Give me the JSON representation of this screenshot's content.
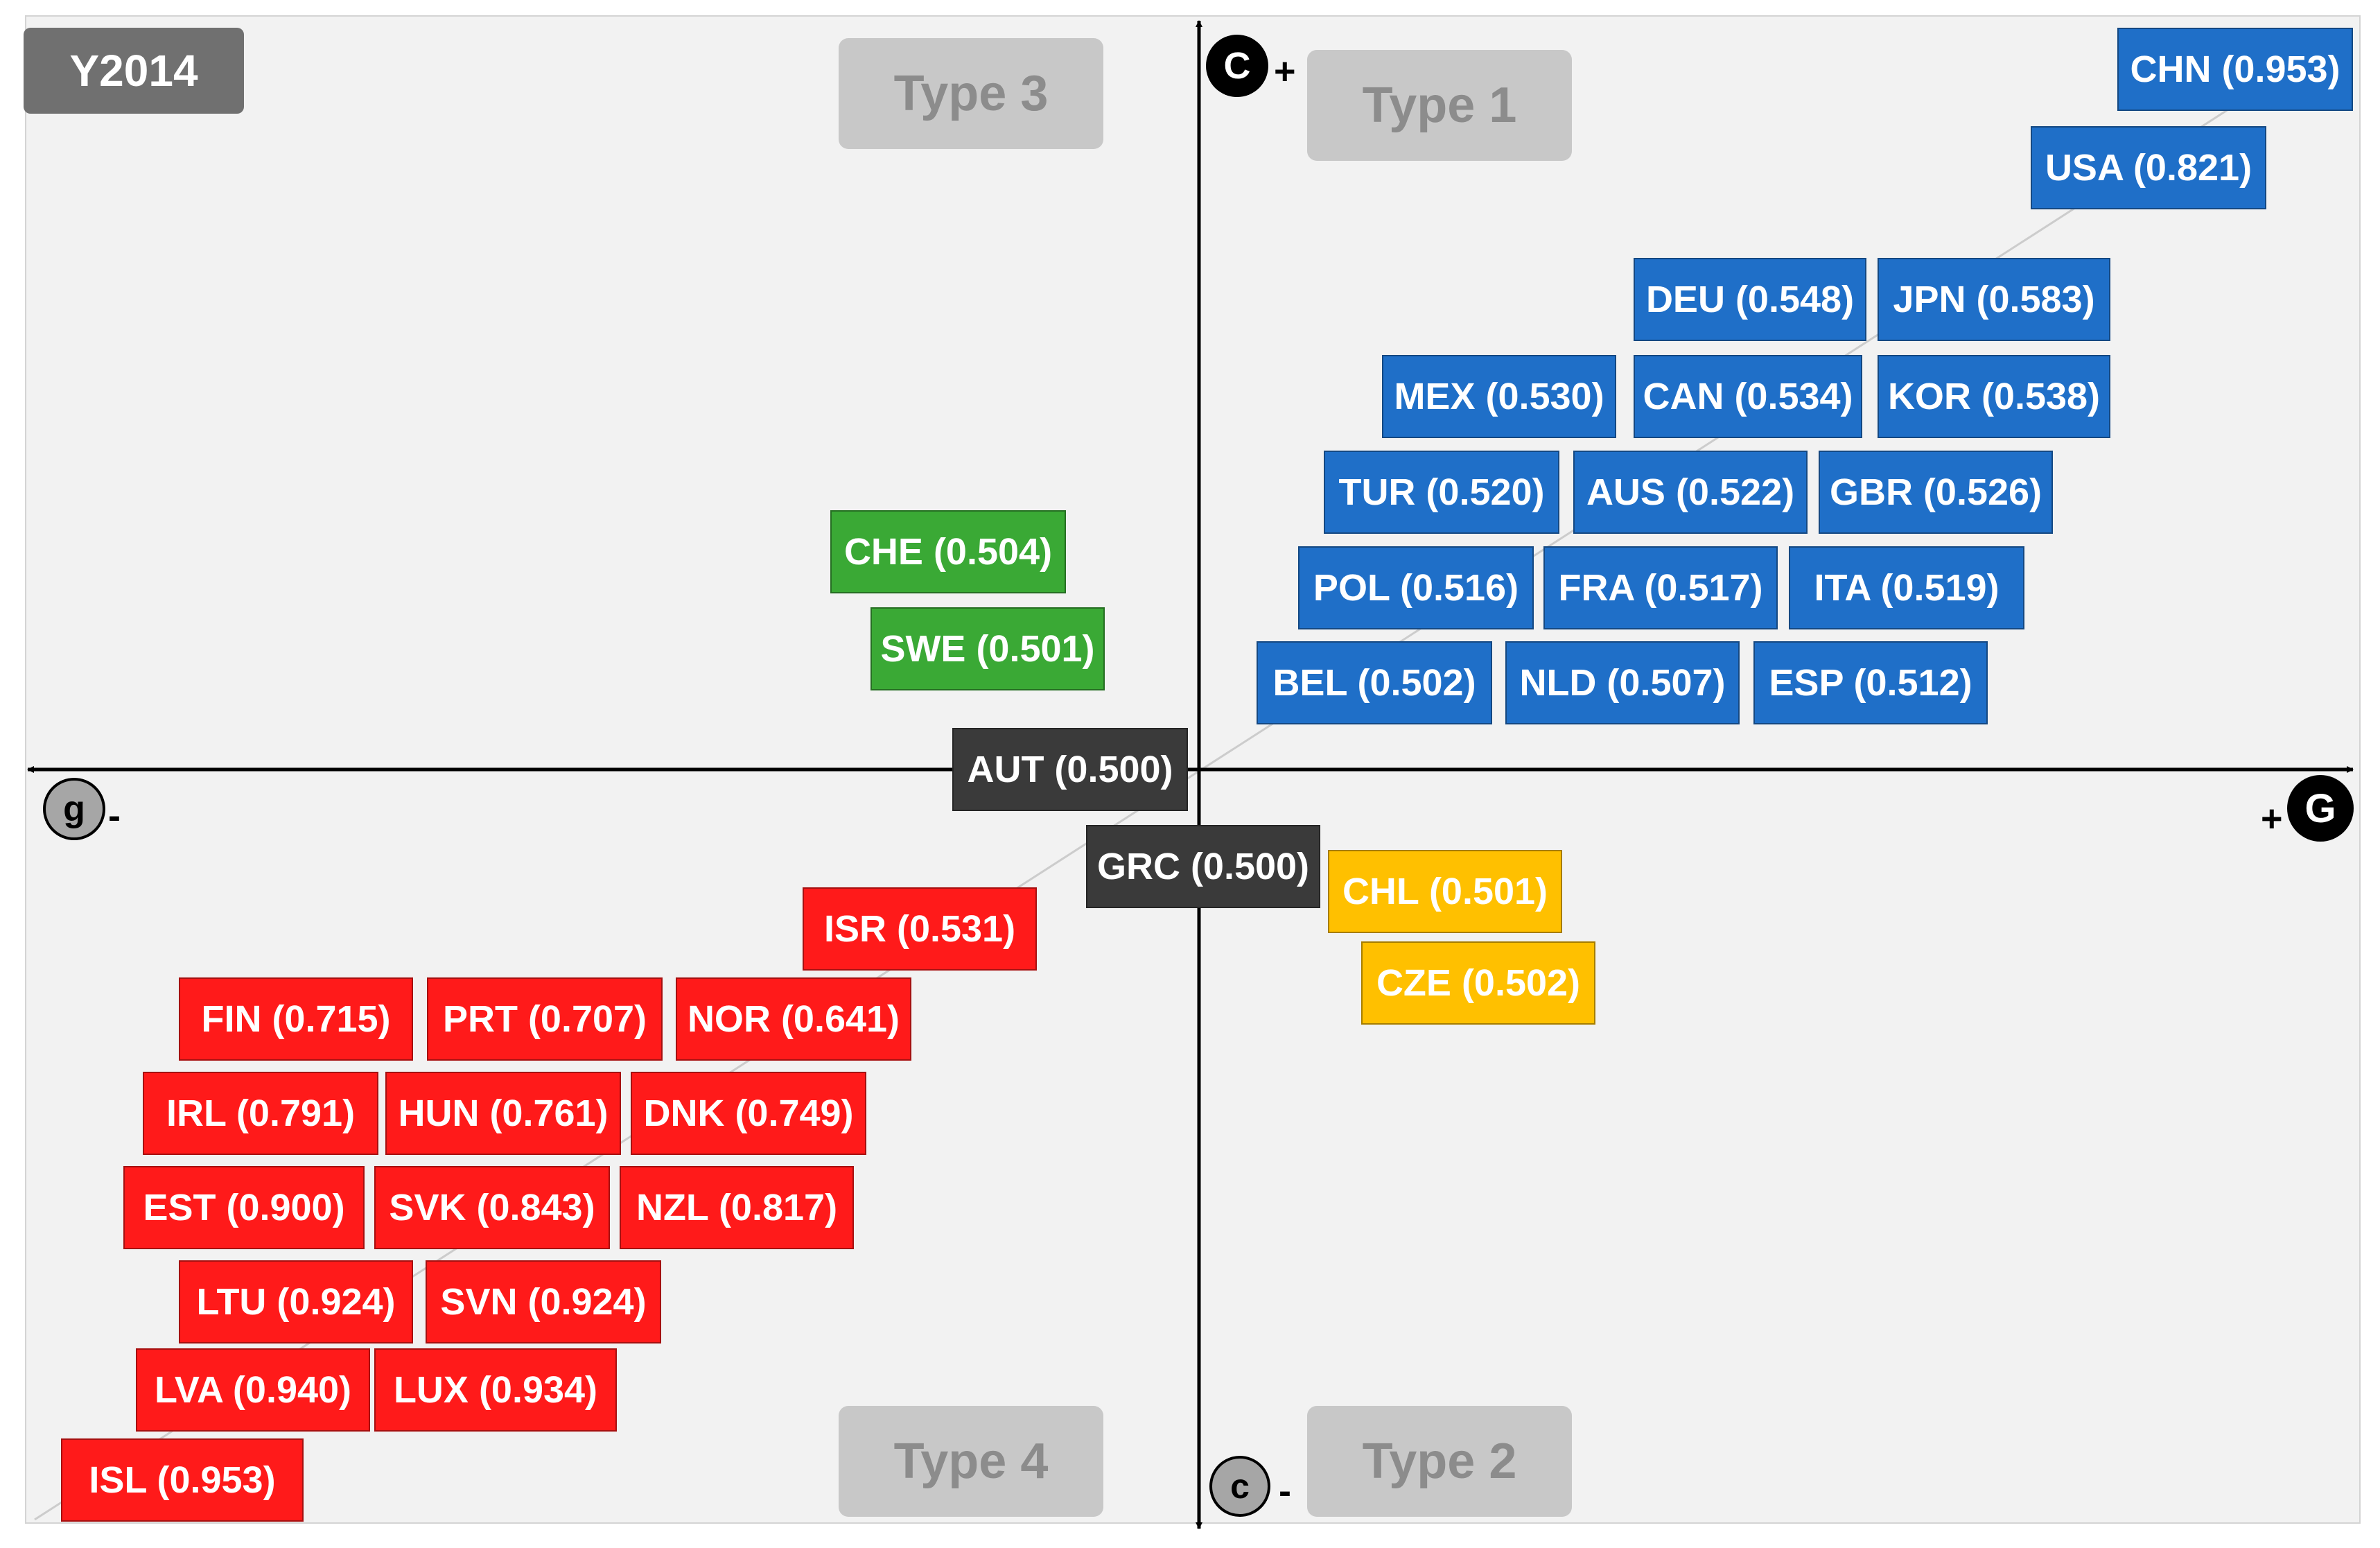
{
  "year_label": "Y2014",
  "types": {
    "type1": "Type 1",
    "type2": "Type 2",
    "type3": "Type 3",
    "type4": "Type 4"
  },
  "axes": {
    "top": {
      "letter": "C",
      "sign": "+"
    },
    "bottom": {
      "letter": "c",
      "sign": "-"
    },
    "left": {
      "letter": "g",
      "sign": "-"
    },
    "right": {
      "letter": "G",
      "sign": "+"
    }
  },
  "countries": [
    {
      "code": "CHN",
      "value": "0.953",
      "type": "type1"
    },
    {
      "code": "USA",
      "value": "0.821",
      "type": "type1"
    },
    {
      "code": "DEU",
      "value": "0.548",
      "type": "type1"
    },
    {
      "code": "JPN",
      "value": "0.583",
      "type": "type1"
    },
    {
      "code": "MEX",
      "value": "0.530",
      "type": "type1"
    },
    {
      "code": "CAN",
      "value": "0.534",
      "type": "type1"
    },
    {
      "code": "KOR",
      "value": "0.538",
      "type": "type1"
    },
    {
      "code": "TUR",
      "value": "0.520",
      "type": "type1"
    },
    {
      "code": "AUS",
      "value": "0.522",
      "type": "type1"
    },
    {
      "code": "GBR",
      "value": "0.526",
      "type": "type1"
    },
    {
      "code": "POL",
      "value": "0.516",
      "type": "type1"
    },
    {
      "code": "FRA",
      "value": "0.517",
      "type": "type1"
    },
    {
      "code": "ITA",
      "value": "0.519",
      "type": "type1"
    },
    {
      "code": "BEL",
      "value": "0.502",
      "type": "type1"
    },
    {
      "code": "NLD",
      "value": "0.507",
      "type": "type1"
    },
    {
      "code": "ESP",
      "value": "0.512",
      "type": "type1"
    },
    {
      "code": "CHE",
      "value": "0.504",
      "type": "type3"
    },
    {
      "code": "SWE",
      "value": "0.501",
      "type": "type3"
    },
    {
      "code": "AUT",
      "value": "0.500",
      "type": "neutral"
    },
    {
      "code": "GRC",
      "value": "0.500",
      "type": "neutral"
    },
    {
      "code": "CHL",
      "value": "0.501",
      "type": "type2"
    },
    {
      "code": "CZE",
      "value": "0.502",
      "type": "type2"
    },
    {
      "code": "ISR",
      "value": "0.531",
      "type": "type4"
    },
    {
      "code": "FIN",
      "value": "0.715",
      "type": "type4"
    },
    {
      "code": "PRT",
      "value": "0.707",
      "type": "type4"
    },
    {
      "code": "NOR",
      "value": "0.641",
      "type": "type4"
    },
    {
      "code": "IRL",
      "value": "0.791",
      "type": "type4"
    },
    {
      "code": "HUN",
      "value": "0.761",
      "type": "type4"
    },
    {
      "code": "DNK",
      "value": "0.749",
      "type": "type4"
    },
    {
      "code": "EST",
      "value": "0.900",
      "type": "type4"
    },
    {
      "code": "SVK",
      "value": "0.843",
      "type": "type4"
    },
    {
      "code": "NZL",
      "value": "0.817",
      "type": "type4"
    },
    {
      "code": "LTU",
      "value": "0.924",
      "type": "type4"
    },
    {
      "code": "SVN",
      "value": "0.924",
      "type": "type4"
    },
    {
      "code": "LVA",
      "value": "0.940",
      "type": "type4"
    },
    {
      "code": "LUX",
      "value": "0.934",
      "type": "type4"
    },
    {
      "code": "ISL",
      "value": "0.953",
      "type": "type4"
    }
  ]
}
